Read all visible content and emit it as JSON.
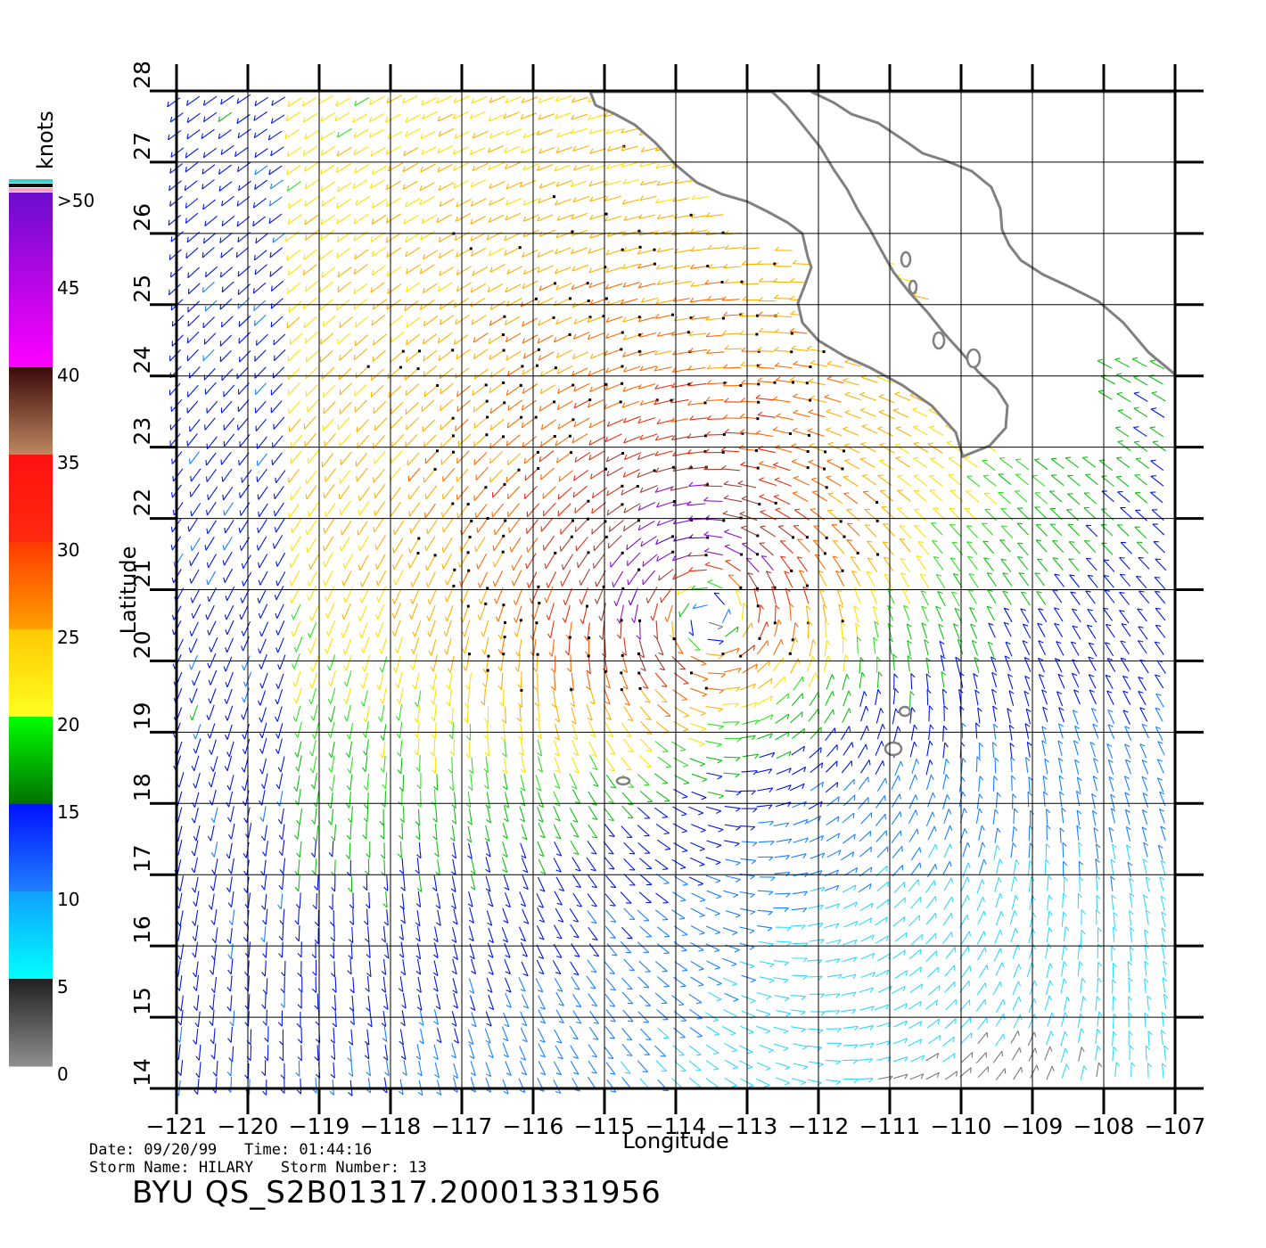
{
  "legend": {
    "unit": "knots",
    "labels": [
      ">50",
      "45",
      "40",
      "35",
      "30",
      "25",
      "20",
      "15",
      "10",
      "5",
      "0"
    ],
    "bands": [
      {
        "from": 50,
        "to": 40,
        "top": "#6a0dcc",
        "bottom": "#ff00ff"
      },
      {
        "from": 40,
        "to": 35,
        "top": "#3a0a0a",
        "bottom": "#c08860"
      },
      {
        "from": 35,
        "to": 30,
        "top": "#ff1010",
        "bottom": "#ff2a10"
      },
      {
        "from": 30,
        "to": 25,
        "top": "#ff3a00",
        "bottom": "#ffa000"
      },
      {
        "from": 25,
        "to": 20,
        "top": "#ffc800",
        "bottom": "#ffff20"
      },
      {
        "from": 20,
        "to": 15,
        "top": "#00ff00",
        "bottom": "#007000"
      },
      {
        "from": 15,
        "to": 10,
        "top": "#0010ff",
        "bottom": "#2080ff"
      },
      {
        "from": 10,
        "to": 5,
        "top": "#10a0ff",
        "bottom": "#00ffff"
      },
      {
        "from": 5,
        "to": 0,
        "top": "#202020",
        "bottom": "#909090"
      }
    ],
    "top_stripes": [
      "#3ad0d0",
      "#101010",
      "#ff9ac0"
    ]
  },
  "map": {
    "x_axis_label": "Longitude",
    "y_axis_label": "Latitude",
    "lon_range": [
      -121,
      -107
    ],
    "lat_range": [
      14,
      28
    ],
    "lon_ticks": [
      -121,
      -120,
      -119,
      -118,
      -117,
      -116,
      -115,
      -114,
      -113,
      -112,
      -111,
      -110,
      -109,
      -108,
      -107
    ],
    "lat_ticks": [
      14,
      15,
      16,
      17,
      18,
      19,
      20,
      21,
      22,
      23,
      24,
      25,
      26,
      27,
      28
    ],
    "storm_center": {
      "lon": -113.6,
      "lat": 20.8
    },
    "coast_color": "#808080"
  },
  "footer": {
    "date_line": "Date: 09/20/99   Time: 01:44:16",
    "storm_line": "Storm Name: HILARY   Storm Number: 13",
    "file_id": "BYU QS_S2B01317.20001331956"
  }
}
